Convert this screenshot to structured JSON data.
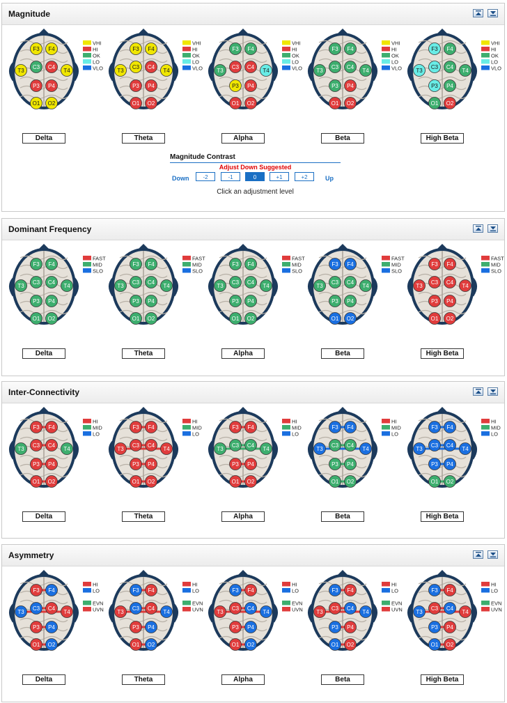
{
  "colors": {
    "yellow": "#f0e600",
    "red": "#e03c3c",
    "green": "#3dae6e",
    "cyan": "#68ece6",
    "blue": "#1a6fe0",
    "head_outline": "#1c3a5c",
    "accent": "#1a6fc4"
  },
  "panel_controls": {
    "collapse_icon": "collapse-up-icon",
    "expand_icon": "expand-down-icon"
  },
  "panels": [
    {
      "id": "magnitude",
      "title": "Magnitude",
      "legend": [
        {
          "label": "VHI",
          "color": "yellow"
        },
        {
          "label": "HI",
          "color": "red"
        },
        {
          "label": "OK",
          "color": "green"
        },
        {
          "label": "LO",
          "color": "cyan"
        },
        {
          "label": "VLO",
          "color": "blue"
        }
      ],
      "heads": [
        {
          "band": "Delta",
          "nodes": {
            "F3": "yellow",
            "F4": "yellow",
            "C3": "green",
            "C4": "red",
            "T3": "yellow",
            "T4": "yellow",
            "P3": "red",
            "P4": "red",
            "O1": "yellow",
            "O2": "yellow"
          }
        },
        {
          "band": "Theta",
          "nodes": {
            "F3": "yellow",
            "F4": "yellow",
            "C3": "yellow",
            "C4": "red",
            "T3": "yellow",
            "T4": "yellow",
            "P3": "red",
            "P4": "red",
            "O1": "red",
            "O2": "red"
          }
        },
        {
          "band": "Alpha",
          "nodes": {
            "F3": "green",
            "F4": "green",
            "C3": "red",
            "C4": "red",
            "T3": "green",
            "T4": "cyan",
            "P3": "yellow",
            "P4": "red",
            "O1": "red",
            "O2": "red"
          }
        },
        {
          "band": "Beta",
          "nodes": {
            "F3": "green",
            "F4": "green",
            "C3": "green",
            "C4": "green",
            "T3": "green",
            "T4": "green",
            "P3": "green",
            "P4": "red",
            "O1": "red",
            "O2": "red"
          }
        },
        {
          "band": "High Beta",
          "nodes": {
            "F3": "cyan",
            "F4": "green",
            "C3": "cyan",
            "C4": "green",
            "T3": "cyan",
            "T4": "green",
            "P3": "cyan",
            "P4": "green",
            "O1": "green",
            "O2": "red"
          }
        }
      ],
      "contrast": {
        "title": "Magnitude Contrast",
        "message": "Adjust Down Suggested",
        "down_label": "Down",
        "up_label": "Up",
        "levels": [
          "-2",
          "-1",
          "0",
          "+1",
          "+2"
        ],
        "selected": "0",
        "hint": "Click an adjustment level"
      }
    },
    {
      "id": "dominant",
      "title": "Dominant Frequency",
      "legend": [
        {
          "label": "FAST",
          "color": "red"
        },
        {
          "label": "MID",
          "color": "green"
        },
        {
          "label": "SLO",
          "color": "blue"
        }
      ],
      "heads": [
        {
          "band": "Delta",
          "nodes": {
            "F3": "green",
            "F4": "green",
            "C3": "green",
            "C4": "green",
            "T3": "green",
            "T4": "green",
            "P3": "green",
            "P4": "green",
            "O1": "green",
            "O2": "green"
          }
        },
        {
          "band": "Theta",
          "nodes": {
            "F3": "green",
            "F4": "green",
            "C3": "green",
            "C4": "green",
            "T3": "green",
            "T4": "green",
            "P3": "green",
            "P4": "green",
            "O1": "green",
            "O2": "green"
          }
        },
        {
          "band": "Alpha",
          "nodes": {
            "F3": "green",
            "F4": "green",
            "C3": "green",
            "C4": "green",
            "T3": "green",
            "T4": "green",
            "P3": "green",
            "P4": "green",
            "O1": "green",
            "O2": "green"
          }
        },
        {
          "band": "Beta",
          "nodes": {
            "F3": "blue",
            "F4": "blue",
            "C3": "green",
            "C4": "green",
            "T3": "green",
            "T4": "green",
            "P3": "green",
            "P4": "green",
            "O1": "blue",
            "O2": "blue"
          }
        },
        {
          "band": "High Beta",
          "nodes": {
            "F3": "red",
            "F4": "red",
            "C3": "red",
            "C4": "red",
            "T3": "red",
            "T4": "red",
            "P3": "red",
            "P4": "red",
            "O1": "red",
            "O2": "red"
          }
        }
      ]
    },
    {
      "id": "interconnectivity",
      "title": "Inter-Connectivity",
      "legend": [
        {
          "label": "HI",
          "color": "red"
        },
        {
          "label": "MID",
          "color": "green"
        },
        {
          "label": "LO",
          "color": "blue"
        }
      ],
      "heads": [
        {
          "band": "Delta",
          "nodes": {
            "F3": "red",
            "F4": "red",
            "C3": "red",
            "C4": "red",
            "T3": "green",
            "T4": "green",
            "P3": "red",
            "P4": "red",
            "O1": "red",
            "O2": "red"
          },
          "links": [
            [
              "F3",
              "F4",
              "red"
            ],
            [
              "C3",
              "C4",
              "red"
            ],
            [
              "P3",
              "P4",
              "red"
            ],
            [
              "O1",
              "O2",
              "red"
            ]
          ]
        },
        {
          "band": "Theta",
          "nodes": {
            "F3": "red",
            "F4": "red",
            "C3": "red",
            "C4": "red",
            "T3": "red",
            "T4": "red",
            "P3": "red",
            "P4": "red",
            "O1": "red",
            "O2": "red"
          },
          "links": [
            [
              "F3",
              "F4",
              "red"
            ],
            [
              "C3",
              "C4",
              "red"
            ],
            [
              "T3",
              "T4",
              "red"
            ],
            [
              "P3",
              "P4",
              "red"
            ],
            [
              "O1",
              "O2",
              "red"
            ]
          ]
        },
        {
          "band": "Alpha",
          "nodes": {
            "F3": "red",
            "F4": "red",
            "C3": "green",
            "C4": "green",
            "T3": "green",
            "T4": "green",
            "P3": "red",
            "P4": "red",
            "O1": "red",
            "O2": "red"
          },
          "links": [
            [
              "F3",
              "F4",
              "red"
            ],
            [
              "C3",
              "C4",
              "green"
            ],
            [
              "T3",
              "T4",
              "green"
            ],
            [
              "P3",
              "P4",
              "red"
            ],
            [
              "O1",
              "O2",
              "red"
            ]
          ]
        },
        {
          "band": "Beta",
          "nodes": {
            "F3": "blue",
            "F4": "blue",
            "C3": "green",
            "C4": "green",
            "T3": "blue",
            "T4": "blue",
            "P3": "green",
            "P4": "green",
            "O1": "green",
            "O2": "green"
          },
          "links": [
            [
              "F3",
              "F4",
              "blue"
            ],
            [
              "C3",
              "C4",
              "green"
            ],
            [
              "T3",
              "T4",
              "blue"
            ],
            [
              "P3",
              "P4",
              "green"
            ],
            [
              "O1",
              "O2",
              "green"
            ]
          ]
        },
        {
          "band": "High Beta",
          "nodes": {
            "F3": "blue",
            "F4": "blue",
            "C3": "blue",
            "C4": "blue",
            "T3": "blue",
            "T4": "blue",
            "P3": "blue",
            "P4": "blue",
            "O1": "green",
            "O2": "green"
          },
          "links": [
            [
              "F3",
              "F4",
              "blue"
            ],
            [
              "C3",
              "C4",
              "blue"
            ],
            [
              "T3",
              "T4",
              "blue"
            ],
            [
              "P3",
              "P4",
              "blue"
            ],
            [
              "O1",
              "O2",
              "green"
            ]
          ]
        }
      ]
    },
    {
      "id": "asymmetry",
      "title": "Asymmetry",
      "legend": [
        {
          "label": "HI",
          "color": "red"
        },
        {
          "label": "LO",
          "color": "blue"
        },
        {
          "label": "",
          "color": ""
        },
        {
          "label": "EVN",
          "color": "green"
        },
        {
          "label": "UVN",
          "color": "red"
        }
      ],
      "heads": [
        {
          "band": "Delta",
          "nodes": {
            "F3": "red",
            "F4": "blue",
            "C3": "blue",
            "C4": "red",
            "T3": "blue",
            "T4": "red",
            "P3": "red",
            "P4": "blue",
            "O1": "red",
            "O2": "blue"
          },
          "links": [
            [
              "F3",
              "F4",
              "red"
            ],
            [
              "C3",
              "C4",
              "red"
            ],
            [
              "T3",
              "T4",
              "red"
            ],
            [
              "P3",
              "P4",
              "red"
            ],
            [
              "O1",
              "O2",
              "red"
            ]
          ]
        },
        {
          "band": "Theta",
          "nodes": {
            "F3": "blue",
            "F4": "red",
            "C3": "blue",
            "C4": "red",
            "T3": "red",
            "T4": "blue",
            "P3": "red",
            "P4": "blue",
            "O1": "red",
            "O2": "blue"
          },
          "links": [
            [
              "F3",
              "F4",
              "red"
            ],
            [
              "C3",
              "C4",
              "red"
            ],
            [
              "T3",
              "T4",
              "red"
            ],
            [
              "P3",
              "P4",
              "red"
            ],
            [
              "O1",
              "O2",
              "red"
            ]
          ]
        },
        {
          "band": "Alpha",
          "nodes": {
            "F3": "blue",
            "F4": "red",
            "C3": "red",
            "C4": "blue",
            "T3": "red",
            "T4": "blue",
            "P3": "red",
            "P4": "blue",
            "O1": "red",
            "O2": "blue"
          },
          "links": [
            [
              "F3",
              "F4",
              "red"
            ],
            [
              "C3",
              "C4",
              "red"
            ],
            [
              "T3",
              "T4",
              "red"
            ],
            [
              "P3",
              "P4",
              "red"
            ],
            [
              "O1",
              "O2",
              "red"
            ]
          ]
        },
        {
          "band": "Beta",
          "nodes": {
            "F3": "blue",
            "F4": "red",
            "C3": "red",
            "C4": "blue",
            "T3": "red",
            "T4": "blue",
            "P3": "blue",
            "P4": "red",
            "O1": "blue",
            "O2": "red"
          },
          "links": [
            [
              "F3",
              "F4",
              "red"
            ],
            [
              "C3",
              "C4",
              "red"
            ],
            [
              "T3",
              "T4",
              "red"
            ],
            [
              "P3",
              "P4",
              "red"
            ],
            [
              "O1",
              "O2",
              "red"
            ]
          ]
        },
        {
          "band": "High Beta",
          "nodes": {
            "F3": "blue",
            "F4": "red",
            "C3": "red",
            "C4": "blue",
            "T3": "blue",
            "T4": "red",
            "P3": "blue",
            "P4": "red",
            "O1": "blue",
            "O2": "red"
          },
          "links": [
            [
              "F3",
              "F4",
              "red"
            ],
            [
              "C3",
              "C4",
              "red"
            ],
            [
              "T3",
              "T4",
              "red"
            ],
            [
              "P3",
              "P4",
              "red"
            ],
            [
              "O1",
              "O2",
              "red"
            ]
          ]
        }
      ]
    }
  ]
}
